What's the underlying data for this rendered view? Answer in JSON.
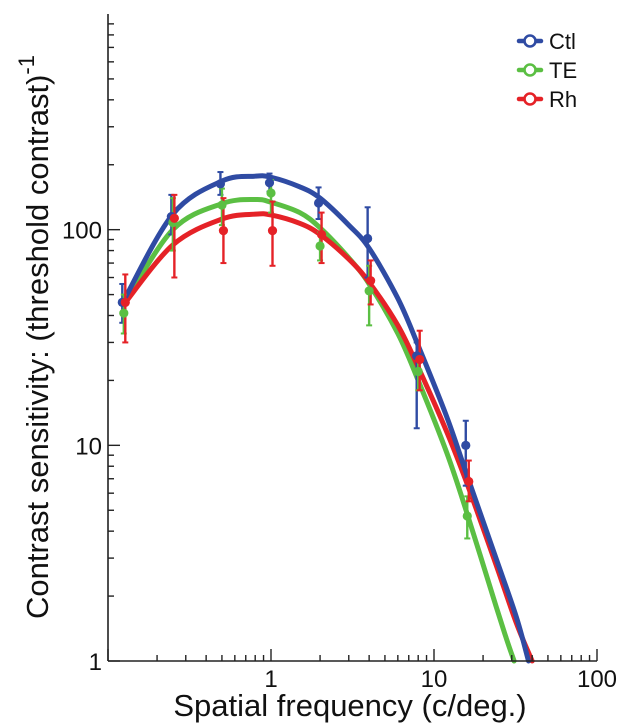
{
  "chart_data": {
    "type": "line",
    "xscale": "log",
    "yscale": "log",
    "xlim": [
      0.1,
      100
    ],
    "ylim": [
      1,
      1000
    ],
    "xlabel": "Spatial frequency (c/deg.)",
    "ylabel": "Contrast sensitivity: (threshold contrast)",
    "ylabel_superscript": "-1",
    "x_ticks": [
      {
        "value": 1,
        "label": "1"
      },
      {
        "value": 10,
        "label": "10"
      },
      {
        "value": 100,
        "label": "100"
      }
    ],
    "y_ticks": [
      {
        "value": 1,
        "label": "1"
      },
      {
        "value": 10,
        "label": "10"
      },
      {
        "value": 100,
        "label": "100"
      }
    ],
    "legend": {
      "position": "top-right"
    },
    "grid": false,
    "series": [
      {
        "name": "Ctl",
        "color": "#2f4ba3",
        "points": [
          {
            "x": 0.125,
            "y": 46,
            "lo": 37,
            "hi": 56
          },
          {
            "x": 0.25,
            "y": 115,
            "lo": 95,
            "hi": 145
          },
          {
            "x": 0.5,
            "y": 163,
            "lo": 145,
            "hi": 185
          },
          {
            "x": 1,
            "y": 165,
            "lo": 150,
            "hi": 182
          },
          {
            "x": 2,
            "y": 133,
            "lo": 112,
            "hi": 157
          },
          {
            "x": 4,
            "y": 91,
            "lo": 60,
            "hi": 127
          },
          {
            "x": 8,
            "y": 26,
            "lo": 12,
            "hi": 30
          },
          {
            "x": 16,
            "y": 10,
            "lo": 6.5,
            "hi": 13
          }
        ],
        "fit": [
          [
            0.125,
            47
          ],
          [
            0.25,
            118
          ],
          [
            0.5,
            168
          ],
          [
            0.8,
            177
          ],
          [
            1,
            175
          ],
          [
            1.5,
            158
          ],
          [
            2,
            140
          ],
          [
            3,
            105
          ],
          [
            4,
            82
          ],
          [
            6,
            48
          ],
          [
            8,
            29
          ],
          [
            12,
            13.5
          ],
          [
            16,
            7.2
          ],
          [
            24,
            3.0
          ],
          [
            32,
            1.6
          ],
          [
            38,
            1
          ]
        ]
      },
      {
        "name": "TE",
        "color": "#5bbf43",
        "points": [
          {
            "x": 0.125,
            "y": 41,
            "lo": 33,
            "hi": 50
          },
          {
            "x": 0.25,
            "y": 108,
            "lo": 80,
            "hi": 140
          },
          {
            "x": 0.5,
            "y": 130,
            "lo": 105,
            "hi": 155
          },
          {
            "x": 1,
            "y": 148,
            "lo": 120,
            "hi": 170
          },
          {
            "x": 2,
            "y": 84,
            "lo": 72,
            "hi": 97
          },
          {
            "x": 4,
            "y": 52,
            "lo": 36,
            "hi": 68
          },
          {
            "x": 8,
            "y": 22,
            "lo": 18,
            "hi": 26
          },
          {
            "x": 16,
            "y": 4.7,
            "lo": 3.7,
            "hi": 5.8
          }
        ],
        "fit": [
          [
            0.125,
            45
          ],
          [
            0.25,
            100
          ],
          [
            0.5,
            132
          ],
          [
            0.8,
            138
          ],
          [
            1,
            134
          ],
          [
            1.5,
            120
          ],
          [
            2,
            102
          ],
          [
            3,
            74
          ],
          [
            4,
            56
          ],
          [
            6,
            33
          ],
          [
            8,
            20
          ],
          [
            12,
            9.2
          ],
          [
            16,
            4.8
          ],
          [
            24,
            1.8
          ],
          [
            28,
            1.25
          ],
          [
            31,
            1
          ]
        ]
      },
      {
        "name": "Rh",
        "color": "#e52227",
        "points": [
          {
            "x": 0.125,
            "y": 46,
            "lo": 30,
            "hi": 62
          },
          {
            "x": 0.25,
            "y": 113,
            "lo": 60,
            "hi": 145
          },
          {
            "x": 0.5,
            "y": 99,
            "lo": 70,
            "hi": 140
          },
          {
            "x": 1,
            "y": 99,
            "lo": 68,
            "hi": 135
          },
          {
            "x": 2,
            "y": 95,
            "lo": 70,
            "hi": 120
          },
          {
            "x": 4,
            "y": 58,
            "lo": 45,
            "hi": 72
          },
          {
            "x": 8,
            "y": 25,
            "lo": 18,
            "hi": 34
          },
          {
            "x": 16,
            "y": 6.8,
            "lo": 5.5,
            "hi": 8.5
          }
        ],
        "fit": [
          [
            0.125,
            45
          ],
          [
            0.25,
            85
          ],
          [
            0.5,
            112
          ],
          [
            0.8,
            118
          ],
          [
            1,
            117
          ],
          [
            1.5,
            107
          ],
          [
            2,
            95
          ],
          [
            3,
            73
          ],
          [
            4,
            57
          ],
          [
            6,
            36
          ],
          [
            8,
            23
          ],
          [
            12,
            11.5
          ],
          [
            16,
            6.6
          ],
          [
            24,
            2.8
          ],
          [
            32,
            1.5
          ],
          [
            40,
            1
          ]
        ]
      }
    ]
  }
}
